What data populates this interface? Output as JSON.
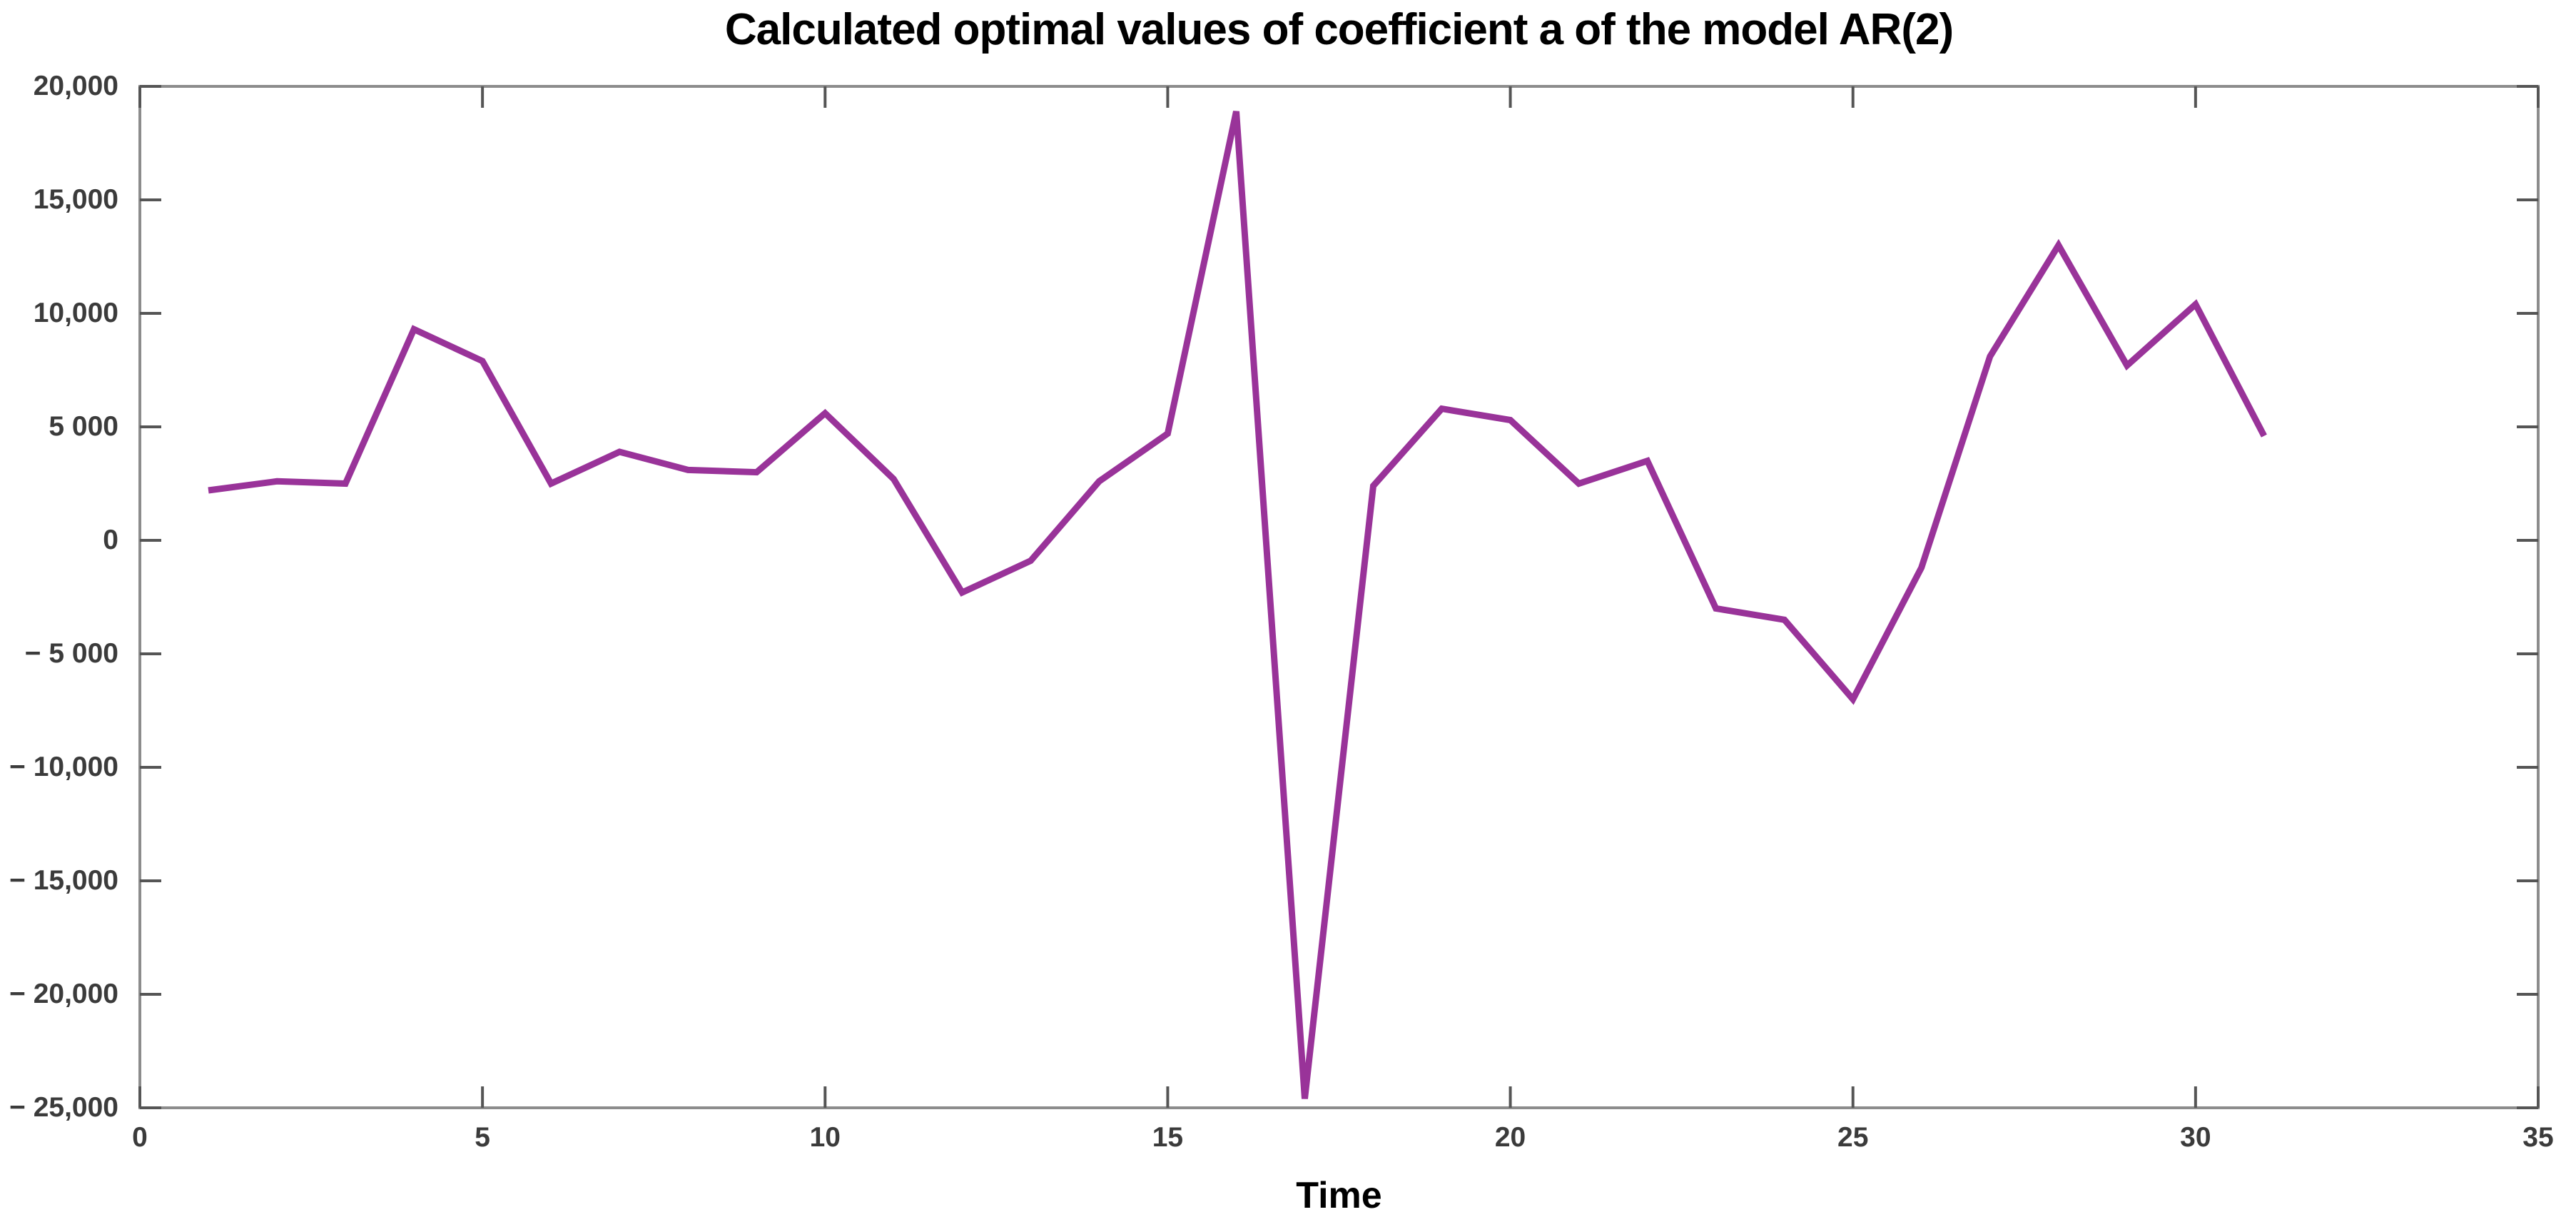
{
  "title": "Calculated optimal values of coefficient a of the model AR(2)",
  "colors": {
    "line": "#993399",
    "axis_box": "#8c8c8c",
    "tick_mark": "#555555",
    "tick_label": "#3b3b3b",
    "title_text": "#000000",
    "background": "#ffffff"
  },
  "chart_data": {
    "type": "line",
    "title": "Calculated optimal values of coefficient a of the model AR(2)",
    "xlabel": "Time",
    "ylabel": "",
    "grid": false,
    "legend": null,
    "xlim": [
      0,
      35
    ],
    "ylim": [
      -25000,
      20000
    ],
    "x_ticks": [
      {
        "value": 0,
        "label": "0"
      },
      {
        "value": 5,
        "label": "5"
      },
      {
        "value": 10,
        "label": "10"
      },
      {
        "value": 15,
        "label": "15"
      },
      {
        "value": 20,
        "label": "20"
      },
      {
        "value": 25,
        "label": "25"
      },
      {
        "value": 30,
        "label": "30"
      },
      {
        "value": 35,
        "label": "35"
      }
    ],
    "y_ticks": [
      {
        "value": 20000,
        "label": "20,000"
      },
      {
        "value": 15000,
        "label": "15,000"
      },
      {
        "value": 10000,
        "label": "10,000"
      },
      {
        "value": 5000,
        "label": "5 000"
      },
      {
        "value": 0,
        "label": "0"
      },
      {
        "value": -5000,
        "label": "− 5 000"
      },
      {
        "value": -10000,
        "label": "− 10,000"
      },
      {
        "value": -15000,
        "label": "− 15,000"
      },
      {
        "value": -20000,
        "label": "− 20,000"
      },
      {
        "value": -25000,
        "label": "− 25,000"
      }
    ],
    "series": [
      {
        "name": "coefficient a",
        "color": "#993399",
        "x": [
          1,
          2,
          3,
          4,
          5,
          6,
          7,
          8,
          9,
          10,
          11,
          12,
          13,
          14,
          15,
          16,
          17,
          18,
          19,
          20,
          21,
          22,
          23,
          24,
          25,
          26,
          27,
          28,
          29,
          30,
          31
        ],
        "values": [
          2200,
          2600,
          2500,
          9300,
          7900,
          2500,
          3900,
          3100,
          3000,
          5600,
          2700,
          -2300,
          -900,
          2600,
          4700,
          18900,
          -24600,
          2400,
          5800,
          5300,
          2500,
          3500,
          -3000,
          -3500,
          -7000,
          -1200,
          8100,
          13000,
          7700,
          10400,
          4600
        ]
      }
    ]
  }
}
